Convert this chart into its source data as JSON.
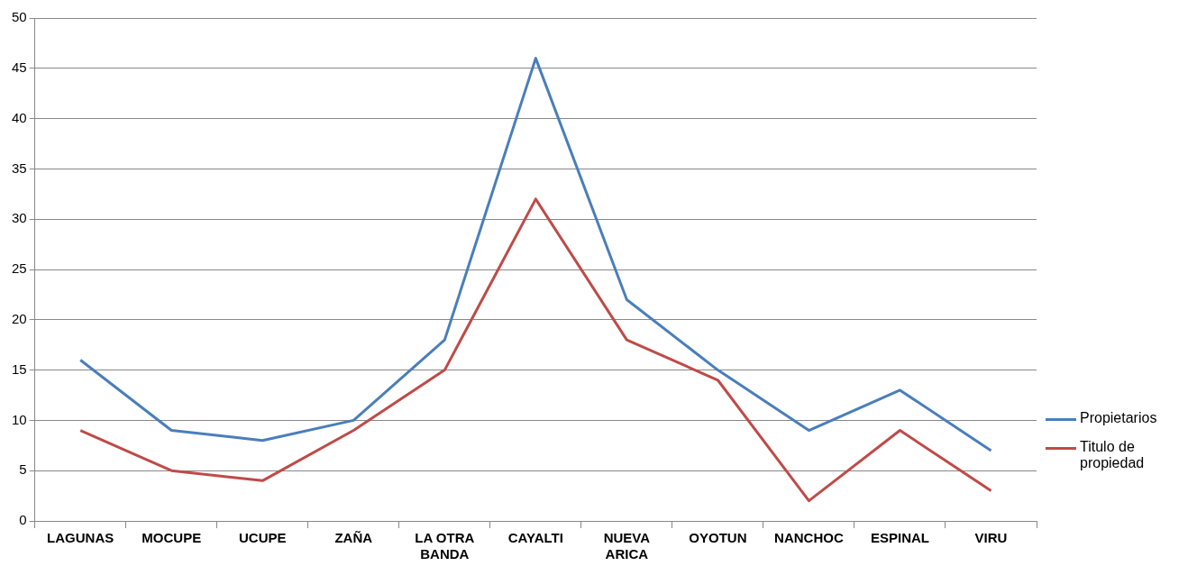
{
  "chart_data": {
    "type": "line",
    "categories": [
      "LAGUNAS",
      "MOCUPE",
      "UCUPE",
      "ZAÑA",
      "LA OTRA BANDA",
      "CAYALTI",
      "NUEVA ARICA",
      "OYOTUN",
      "NANCHOC",
      "ESPINAL",
      "VIRU"
    ],
    "series": [
      {
        "name": "Propietarios",
        "color": "#4a7ebb",
        "values": [
          16,
          9,
          8,
          10,
          18,
          46,
          22,
          15,
          9,
          13,
          7
        ]
      },
      {
        "name": "Titulo de propiedad",
        "color": "#be4b48",
        "values": [
          9,
          5,
          4,
          9,
          15,
          32,
          18,
          14,
          2,
          9,
          3
        ]
      }
    ],
    "ylim": [
      0,
      50
    ],
    "yticks": [
      0,
      5,
      10,
      15,
      20,
      25,
      30,
      35,
      40,
      45,
      50
    ],
    "grid": "y",
    "legend": "right",
    "marker": "none",
    "line_style": "solid"
  }
}
